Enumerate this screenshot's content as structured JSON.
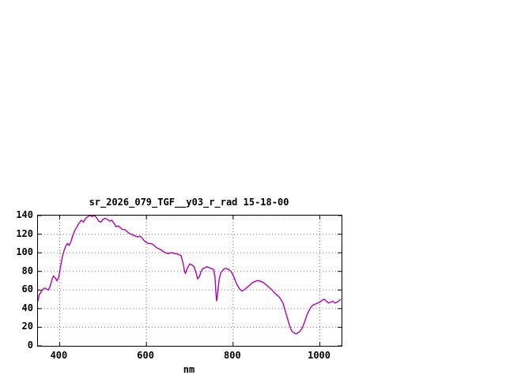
{
  "page": {
    "background": "#ffffff"
  },
  "chart": {
    "title": "sr_2026_079_TGF__y03_r_rad 15-18-00",
    "xlabel": "nm",
    "line_color": "#b000b0",
    "grid_color": "#777777",
    "axis_color": "#000000"
  },
  "chart_data": {
    "type": "line",
    "title": "sr_2026_079_TGF__y03_r_rad 15-18-00",
    "xlabel": "nm",
    "ylabel": "",
    "xlim": [
      350,
      1050
    ],
    "ylim": [
      0,
      140
    ],
    "xticks": [
      400,
      600,
      800,
      1000
    ],
    "yticks": [
      0,
      20,
      40,
      60,
      80,
      100,
      120,
      140
    ],
    "grid": true,
    "legend": false,
    "series": [
      {
        "name": "sr_2026_079_TGF__y03_r_rad",
        "x": [
          350,
          353,
          356,
          360,
          365,
          370,
          374,
          378,
          383,
          386,
          390,
          394,
          398,
          402,
          406,
          410,
          414,
          418,
          422,
          426,
          430,
          435,
          440,
          445,
          450,
          455,
          460,
          465,
          470,
          475,
          480,
          485,
          490,
          495,
          500,
          505,
          510,
          515,
          520,
          525,
          530,
          535,
          540,
          545,
          550,
          555,
          560,
          565,
          570,
          575,
          580,
          585,
          590,
          595,
          600,
          605,
          610,
          615,
          620,
          625,
          630,
          635,
          640,
          645,
          650,
          655,
          660,
          665,
          670,
          675,
          680,
          685,
          688,
          690,
          695,
          700,
          705,
          710,
          715,
          718,
          722,
          726,
          730,
          735,
          740,
          745,
          750,
          755,
          758,
          760,
          762,
          764,
          768,
          772,
          776,
          780,
          785,
          790,
          795,
          800,
          805,
          810,
          815,
          820,
          825,
          830,
          835,
          840,
          845,
          850,
          855,
          860,
          865,
          870,
          875,
          880,
          885,
          890,
          895,
          900,
          905,
          910,
          915,
          920,
          925,
          930,
          935,
          940,
          945,
          950,
          955,
          960,
          965,
          970,
          975,
          980,
          985,
          990,
          995,
          1000,
          1005,
          1010,
          1015,
          1020,
          1025,
          1030,
          1035,
          1040,
          1045,
          1048
        ],
        "y": [
          48,
          55,
          57,
          60,
          62,
          61,
          60,
          64,
          72,
          75,
          73,
          70,
          74,
          85,
          95,
          102,
          107,
          110,
          108,
          112,
          118,
          124,
          128,
          132,
          135,
          133,
          137,
          139,
          140,
          139,
          140,
          138,
          134,
          133,
          136,
          137,
          136,
          134,
          135,
          132,
          128,
          129,
          127,
          125,
          125,
          123,
          121,
          120,
          119,
          118,
          117,
          118,
          116,
          113,
          111,
          110,
          110,
          109,
          107,
          105,
          104,
          103,
          101,
          100,
          99,
          100,
          100,
          99,
          99,
          98,
          97,
          88,
          80,
          78,
          84,
          88,
          87,
          85,
          78,
          72,
          74,
          80,
          83,
          84,
          85,
          84,
          83,
          82,
          75,
          60,
          48,
          55,
          72,
          79,
          81,
          83,
          83,
          82,
          80,
          76,
          70,
          65,
          61,
          59,
          60,
          62,
          64,
          66,
          68,
          69,
          70,
          70,
          69,
          68,
          66,
          64,
          62,
          60,
          57,
          55,
          53,
          50,
          46,
          38,
          30,
          22,
          16,
          14,
          13,
          14,
          16,
          20,
          26,
          33,
          38,
          42,
          44,
          45,
          46,
          47,
          49,
          50,
          48,
          46,
          47,
          48,
          46,
          47,
          49,
          50
        ]
      }
    ]
  }
}
